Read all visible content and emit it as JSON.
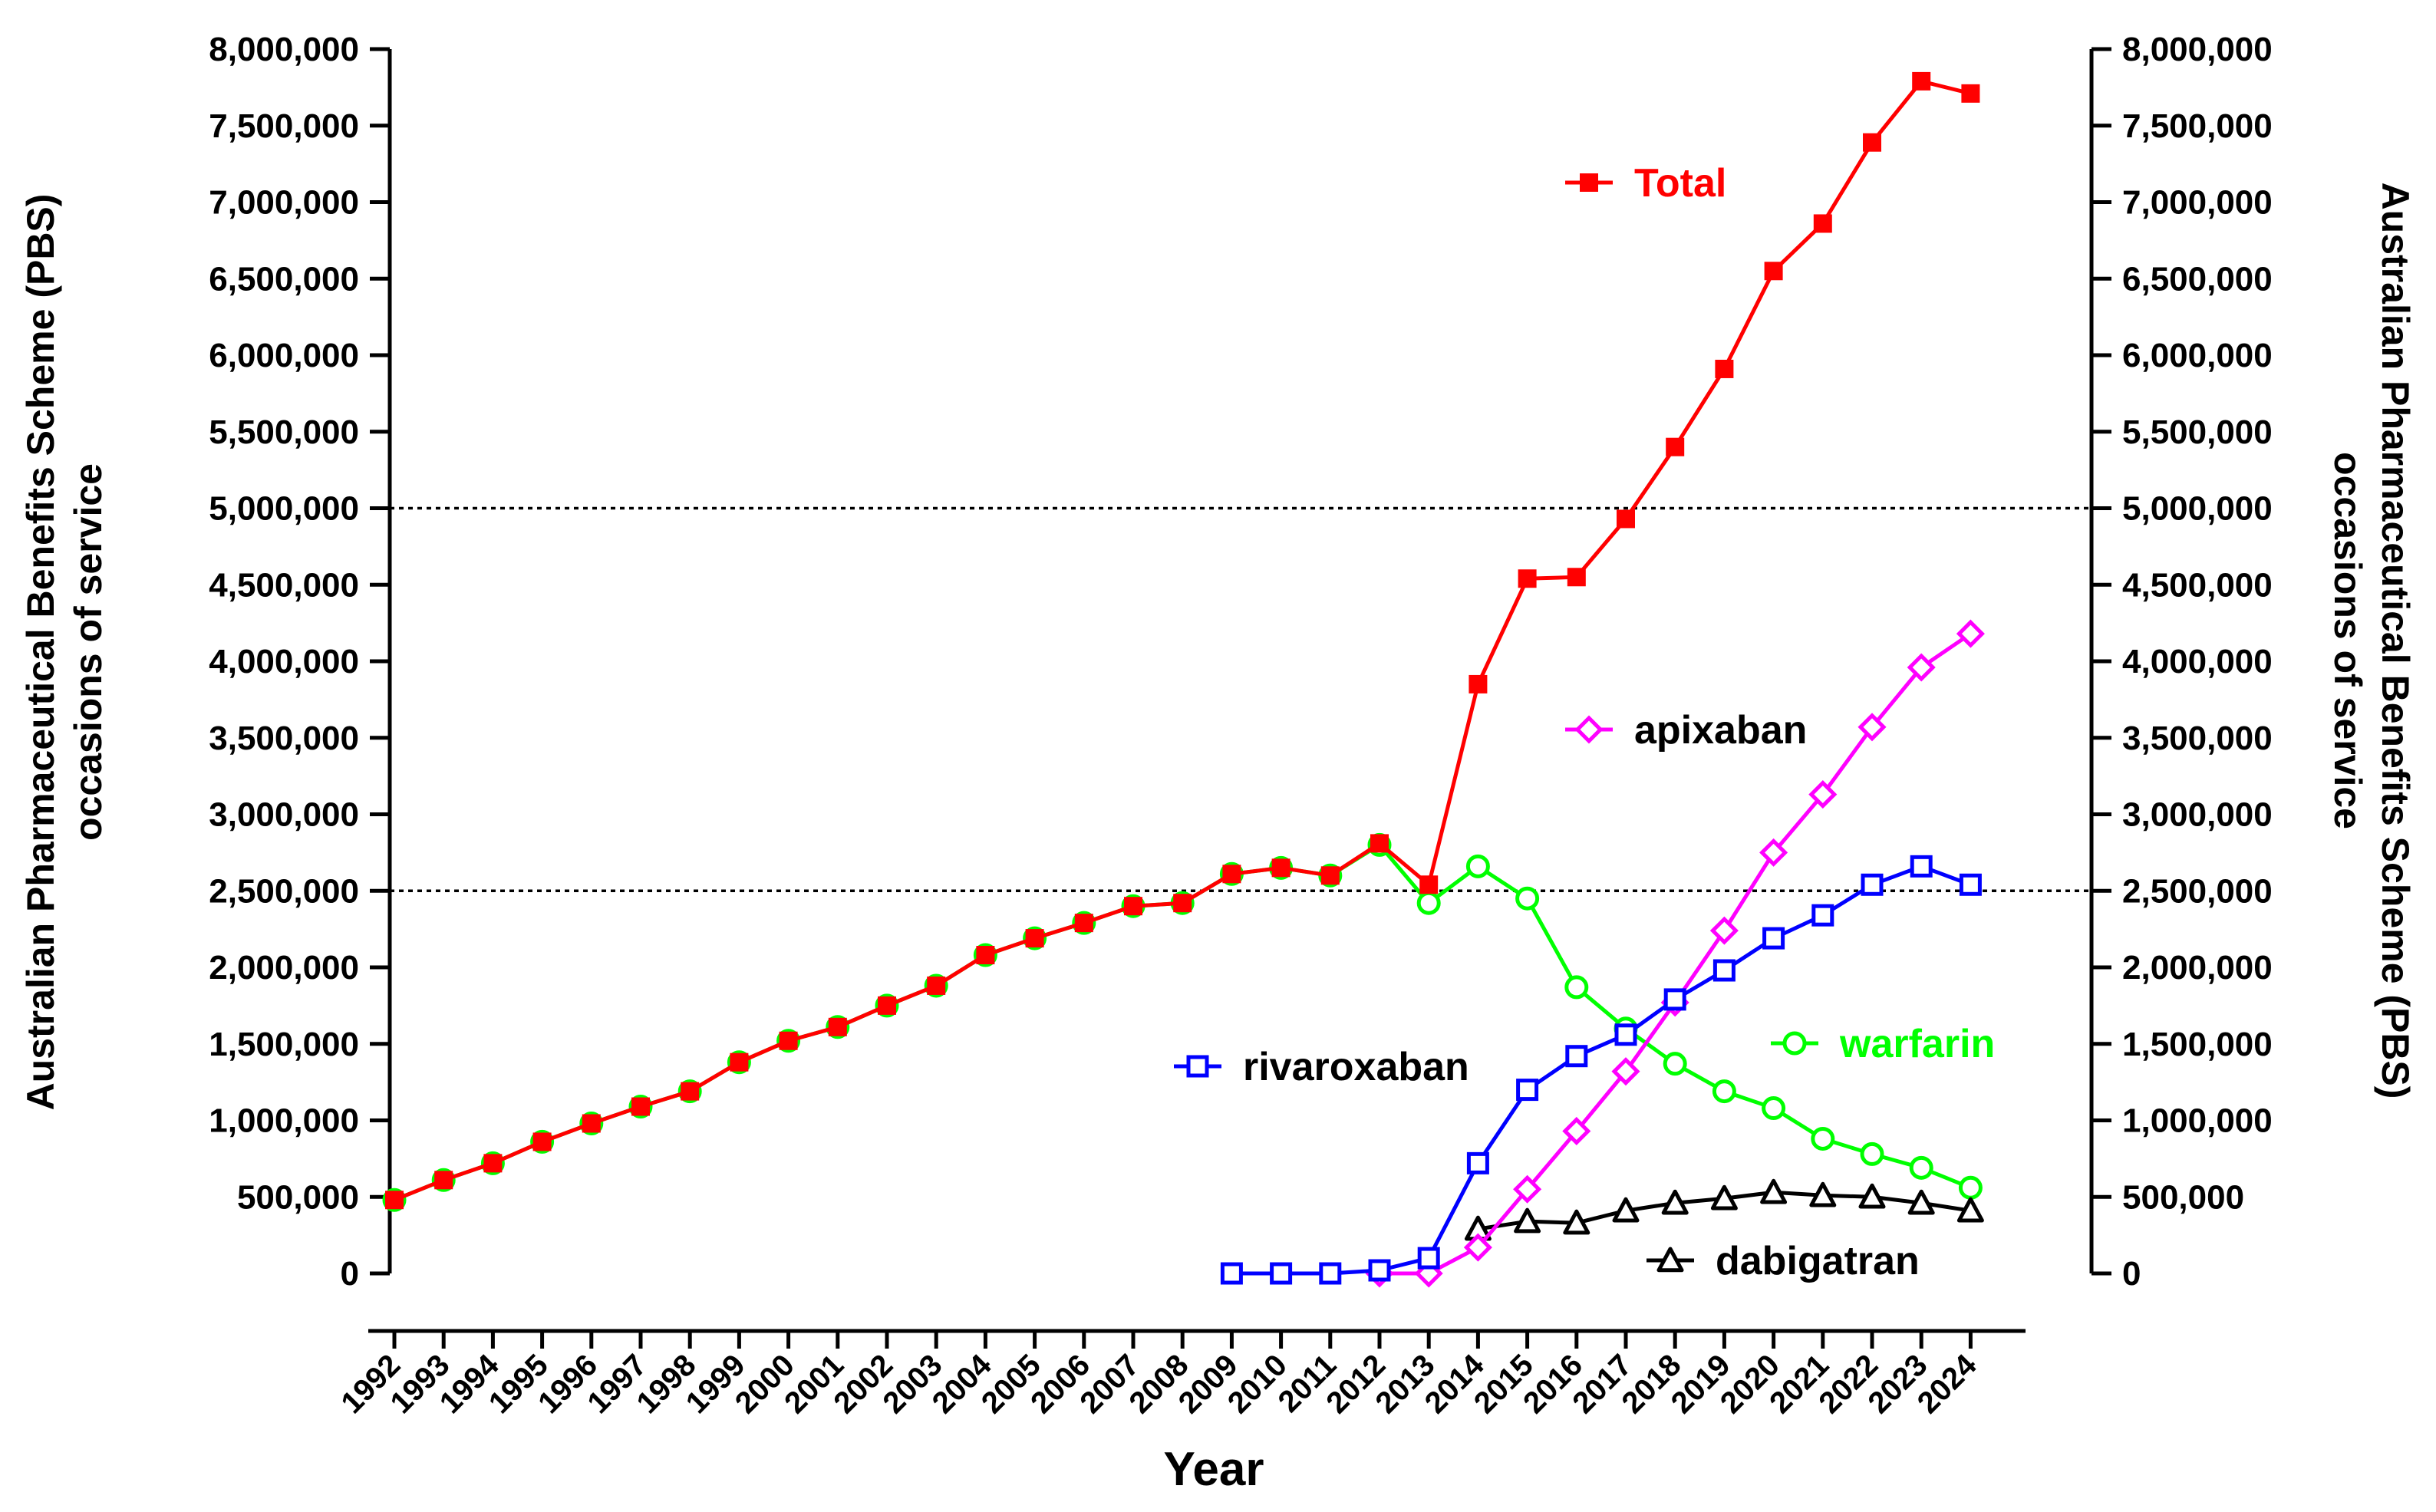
{
  "chart_data": {
    "type": "line",
    "xlabel": "Year",
    "ylabel_left": "Australian Pharmaceutical Benefits Scheme (PBS)\noccasions of service",
    "ylabel_right": "Australian Pharmaceutical Benefits Scheme (PBS)\noccasions of service",
    "ylim": [
      0,
      8000000
    ],
    "y_ticks": [
      0,
      500000,
      1000000,
      1500000,
      2000000,
      2500000,
      3000000,
      3500000,
      4000000,
      4500000,
      5000000,
      5500000,
      6000000,
      6500000,
      7000000,
      7500000,
      8000000
    ],
    "y_tick_labels": [
      "0",
      "500,000",
      "1,000,000",
      "1,500,000",
      "2,000,000",
      "2,500,000",
      "3,000,000",
      "3,500,000",
      "4,000,000",
      "4,500,000",
      "5,000,000",
      "5,500,000",
      "6,000,000",
      "6,500,000",
      "7,000,000",
      "7,500,000",
      "8,000,000"
    ],
    "x_categories": [
      "1992",
      "1993",
      "1994",
      "1995",
      "1996",
      "1997",
      "1998",
      "1999",
      "2000",
      "2001",
      "2002",
      "2003",
      "2004",
      "2005",
      "2006",
      "2007",
      "2008",
      "2009",
      "2010",
      "2011",
      "2012",
      "2013",
      "2014",
      "2015",
      "2016",
      "2017",
      "2018",
      "2019",
      "2020",
      "2021",
      "2022",
      "2023",
      "2024"
    ],
    "reference_lines": [
      2500000,
      5000000
    ],
    "grid": false,
    "legend": "inline labels",
    "series": [
      {
        "name": "Total",
        "color": "#ff0000",
        "marker": "filled-square",
        "x": [
          "1992",
          "1993",
          "1994",
          "1995",
          "1996",
          "1997",
          "1998",
          "1999",
          "2000",
          "2001",
          "2002",
          "2003",
          "2004",
          "2005",
          "2006",
          "2007",
          "2008",
          "2009",
          "2010",
          "2011",
          "2012",
          "2013",
          "2014",
          "2015",
          "2016",
          "2017",
          "2018",
          "2019",
          "2020",
          "2021",
          "2022",
          "2023",
          "2024"
        ],
        "values": [
          480000,
          610000,
          720000,
          860000,
          980000,
          1090000,
          1190000,
          1380000,
          1520000,
          1610000,
          1750000,
          1880000,
          2080000,
          2190000,
          2290000,
          2400000,
          2420000,
          2610000,
          2650000,
          2600000,
          2810000,
          2540000,
          3850000,
          4540000,
          4550000,
          4930000,
          5400000,
          5910000,
          6550000,
          6860000,
          7390000,
          7790000,
          7710000
        ]
      },
      {
        "name": "warfarin",
        "color": "#00ff00",
        "marker": "open-circle",
        "x": [
          "1992",
          "1993",
          "1994",
          "1995",
          "1996",
          "1997",
          "1998",
          "1999",
          "2000",
          "2001",
          "2002",
          "2003",
          "2004",
          "2005",
          "2006",
          "2007",
          "2008",
          "2009",
          "2010",
          "2011",
          "2012",
          "2013",
          "2014",
          "2015",
          "2016",
          "2017",
          "2018",
          "2019",
          "2020",
          "2021",
          "2022",
          "2023",
          "2024"
        ],
        "values": [
          480000,
          610000,
          720000,
          860000,
          980000,
          1090000,
          1190000,
          1380000,
          1520000,
          1610000,
          1750000,
          1880000,
          2080000,
          2190000,
          2290000,
          2400000,
          2420000,
          2610000,
          2650000,
          2600000,
          2800000,
          2420000,
          2660000,
          2450000,
          1870000,
          1600000,
          1370000,
          1190000,
          1080000,
          880000,
          780000,
          690000,
          560000
        ]
      },
      {
        "name": "rivaroxaban",
        "color": "#0000ff",
        "marker": "open-square",
        "x": [
          "2009",
          "2010",
          "2011",
          "2012",
          "2013",
          "2014",
          "2015",
          "2016",
          "2017",
          "2018",
          "2019",
          "2020",
          "2021",
          "2022",
          "2023",
          "2024"
        ],
        "values": [
          0,
          0,
          0,
          20000,
          100000,
          720000,
          1200000,
          1420000,
          1560000,
          1790000,
          1980000,
          2190000,
          2340000,
          2540000,
          2660000,
          2540000
        ]
      },
      {
        "name": "apixaban",
        "color": "#ff00ff",
        "marker": "open-diamond",
        "x": [
          "2012",
          "2013",
          "2014",
          "2015",
          "2016",
          "2017",
          "2018",
          "2019",
          "2020",
          "2021",
          "2022",
          "2023",
          "2024"
        ],
        "values": [
          0,
          0,
          170000,
          550000,
          930000,
          1320000,
          1770000,
          2240000,
          2750000,
          3130000,
          3570000,
          3960000,
          4180000
        ]
      },
      {
        "name": "dabigatran",
        "color": "#000000",
        "marker": "open-triangle",
        "x": [
          "2014",
          "2015",
          "2016",
          "2017",
          "2018",
          "2019",
          "2020",
          "2021",
          "2022",
          "2023",
          "2024"
        ],
        "values": [
          290000,
          340000,
          330000,
          410000,
          460000,
          490000,
          530000,
          510000,
          500000,
          460000,
          410000
        ]
      }
    ]
  }
}
